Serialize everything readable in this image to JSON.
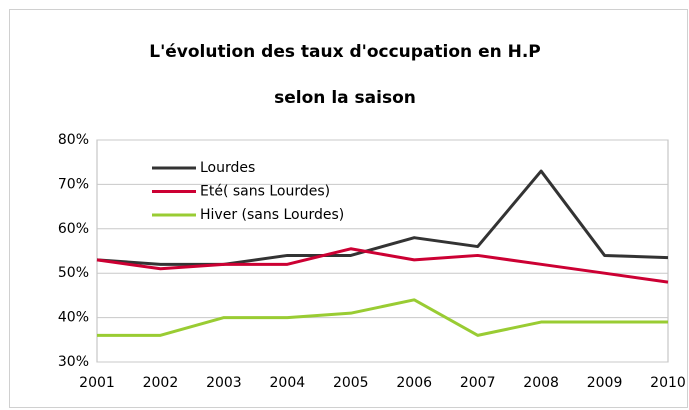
{
  "chart_data": {
    "type": "line",
    "title": [
      "L'évolution des taux d'occupation en H.P",
      "selon la saison"
    ],
    "categories": [
      "2001",
      "2002",
      "2003",
      "2004",
      "2005",
      "2006",
      "2007",
      "2008",
      "2009",
      "2010"
    ],
    "series": [
      {
        "name": "Lourdes",
        "color": "#333333",
        "values": [
          53,
          52,
          52,
          54,
          54,
          58,
          56,
          73,
          54,
          53.5
        ]
      },
      {
        "name": "Eté( sans Lourdes)",
        "color": "#cc0033",
        "values": [
          53,
          51,
          52,
          52,
          55.5,
          53,
          54,
          52,
          50,
          48
        ]
      },
      {
        "name": "Hiver (sans Lourdes)",
        "color": "#99cc33",
        "values": [
          36,
          36,
          40,
          40,
          41,
          44,
          36,
          39,
          39,
          39
        ]
      }
    ],
    "ylim": [
      30,
      80
    ],
    "yticks": [
      {
        "value": 30,
        "label": "30%"
      },
      {
        "value": 40,
        "label": "40%"
      },
      {
        "value": 50,
        "label": "50%"
      },
      {
        "value": 60,
        "label": "60%"
      },
      {
        "value": 70,
        "label": "70%"
      },
      {
        "value": 80,
        "label": "80%"
      }
    ],
    "grid": true,
    "legend": "top-left"
  }
}
